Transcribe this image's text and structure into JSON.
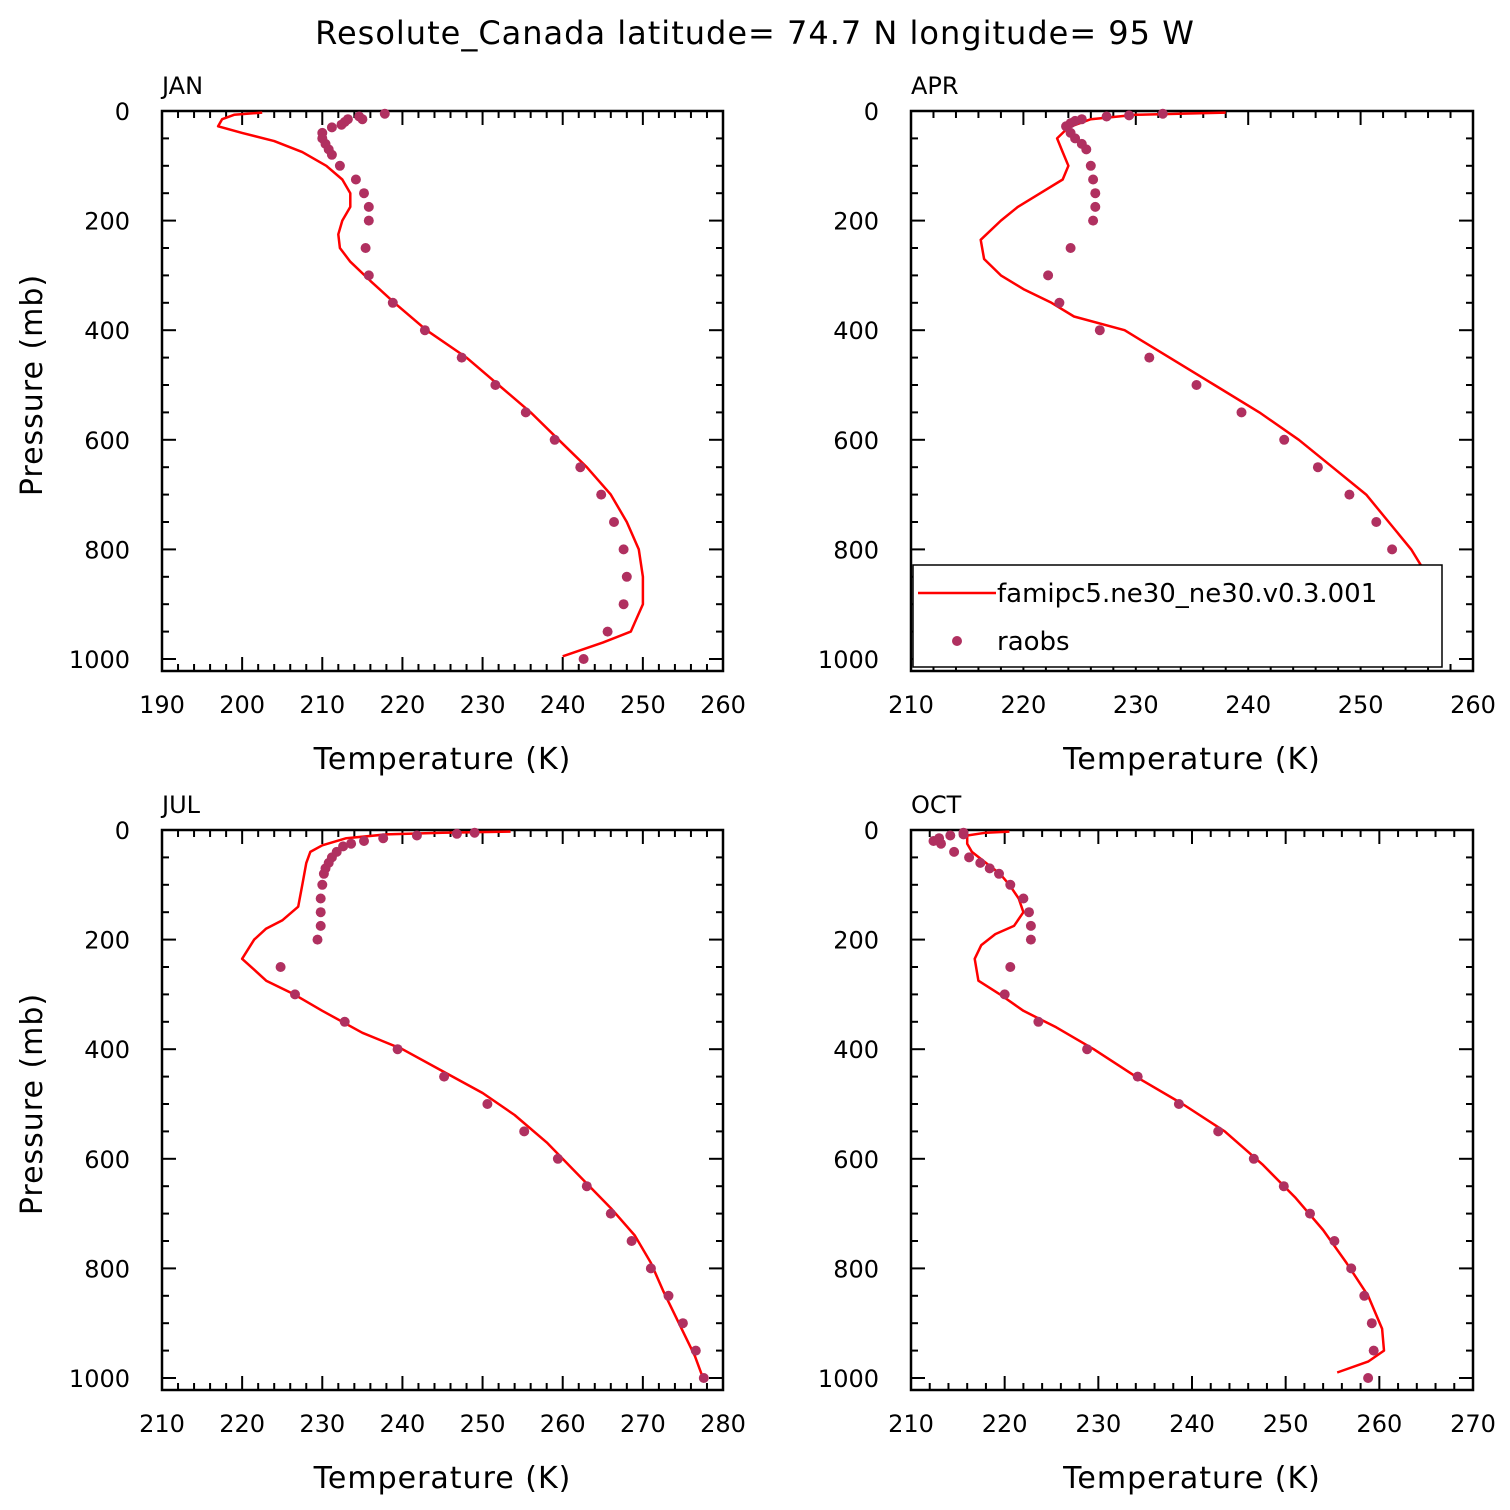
{
  "figure": {
    "title": "Resolute_Canada  latitude= 74.7 N longitude= 95 W",
    "legend": {
      "model_label": "famipc5.ne30_ne30.v0.3.001",
      "obs_label": "raobs",
      "panel": "APR"
    },
    "colors": {
      "model": "#ff0000",
      "obs": "#b03060",
      "axes": "#000000"
    }
  },
  "chart_data": [
    {
      "type": "line",
      "panel_label": "JAN",
      "xlabel": "Temperature (K)",
      "ylabel": "Pressure (mb)",
      "xlim": [
        190,
        260
      ],
      "ylim": [
        1000,
        0
      ],
      "xticks": [
        190,
        200,
        210,
        220,
        230,
        240,
        250,
        260
      ],
      "yticks": [
        0,
        200,
        400,
        600,
        800,
        1000
      ],
      "series": [
        {
          "kind": "line",
          "points": [
            [
              202.5,
              3
            ],
            [
              199,
              7
            ],
            [
              197.5,
              15
            ],
            [
              197,
              28
            ],
            [
              200,
              40
            ],
            [
              204,
              55
            ],
            [
              207.5,
              75
            ],
            [
              210.5,
              100
            ],
            [
              212.5,
              125
            ],
            [
              213.5,
              150
            ],
            [
              213.5,
              175
            ],
            [
              212.5,
              200
            ],
            [
              212,
              225
            ],
            [
              212.2,
              250
            ],
            [
              213.5,
              275
            ],
            [
              216,
              310
            ],
            [
              219,
              350
            ],
            [
              223,
              400
            ],
            [
              228,
              450
            ],
            [
              232,
              500
            ],
            [
              236,
              550
            ],
            [
              239.5,
              600
            ],
            [
              243,
              650
            ],
            [
              246,
              700
            ],
            [
              248,
              750
            ],
            [
              249.5,
              800
            ],
            [
              250,
              850
            ],
            [
              250,
              900
            ],
            [
              248.5,
              950
            ],
            [
              245,
              970
            ],
            [
              240,
              995
            ]
          ]
        },
        {
          "kind": "scatter",
          "points": [
            [
              217.8,
              5
            ],
            [
              214.6,
              10
            ],
            [
              213.2,
              15
            ],
            [
              215,
              15
            ],
            [
              212.8,
              20
            ],
            [
              212.4,
              25
            ],
            [
              211.2,
              30
            ],
            [
              210,
              40
            ],
            [
              210,
              50
            ],
            [
              210.4,
              60
            ],
            [
              210.8,
              70
            ],
            [
              211.2,
              80
            ],
            [
              212.2,
              100
            ],
            [
              214.2,
              125
            ],
            [
              215.2,
              150
            ],
            [
              215.8,
              175
            ],
            [
              215.8,
              200
            ],
            [
              215.4,
              250
            ],
            [
              215.8,
              300
            ],
            [
              218.8,
              350
            ],
            [
              222.8,
              400
            ],
            [
              227.4,
              450
            ],
            [
              231.6,
              500
            ],
            [
              235.4,
              550
            ],
            [
              239,
              600
            ],
            [
              242.2,
              650
            ],
            [
              244.8,
              700
            ],
            [
              246.4,
              750
            ],
            [
              247.6,
              800
            ],
            [
              248,
              850
            ],
            [
              247.6,
              900
            ],
            [
              245.6,
              950
            ],
            [
              242.6,
              1000
            ]
          ]
        }
      ]
    },
    {
      "type": "line",
      "panel_label": "APR",
      "xlabel": "Temperature (K)",
      "ylabel": "",
      "xlim": [
        210,
        260
      ],
      "ylim": [
        1000,
        0
      ],
      "xticks": [
        210,
        220,
        230,
        240,
        250,
        260
      ],
      "yticks": [
        0,
        200,
        400,
        600,
        800,
        1000
      ],
      "series": [
        {
          "kind": "line",
          "points": [
            [
              238,
              3
            ],
            [
              230,
              7
            ],
            [
              226,
              15
            ],
            [
              224,
              30
            ],
            [
              223,
              50
            ],
            [
              223.5,
              75
            ],
            [
              224,
              100
            ],
            [
              223.5,
              125
            ],
            [
              221.5,
              150
            ],
            [
              219.5,
              175
            ],
            [
              218,
              200
            ],
            [
              216.2,
              235
            ],
            [
              216.5,
              270
            ],
            [
              218,
              300
            ],
            [
              220,
              325
            ],
            [
              222.5,
              350
            ],
            [
              224.5,
              375
            ],
            [
              229,
              400
            ],
            [
              233,
              450
            ],
            [
              237,
              500
            ],
            [
              241,
              550
            ],
            [
              244.5,
              600
            ],
            [
              247.5,
              650
            ],
            [
              250.5,
              700
            ],
            [
              252.5,
              750
            ],
            [
              254.5,
              800
            ],
            [
              256,
              850
            ],
            [
              256.8,
              900
            ],
            [
              256.3,
              950
            ],
            [
              254,
              980
            ],
            [
              251,
              995
            ]
          ]
        },
        {
          "kind": "scatter",
          "points": [
            [
              232.4,
              5
            ],
            [
              229.4,
              8
            ],
            [
              227.4,
              10
            ],
            [
              225.2,
              15
            ],
            [
              224.6,
              18
            ],
            [
              224.2,
              22
            ],
            [
              223.8,
              28
            ],
            [
              224.2,
              40
            ],
            [
              224.6,
              50
            ],
            [
              225.2,
              60
            ],
            [
              225.6,
              70
            ],
            [
              226,
              100
            ],
            [
              226.2,
              125
            ],
            [
              226.4,
              150
            ],
            [
              226.4,
              175
            ],
            [
              226.2,
              200
            ],
            [
              224.2,
              250
            ],
            [
              222.2,
              300
            ],
            [
              223.2,
              350
            ],
            [
              226.8,
              400
            ],
            [
              231.2,
              450
            ],
            [
              235.4,
              500
            ],
            [
              239.4,
              550
            ],
            [
              243.2,
              600
            ],
            [
              246.2,
              650
            ],
            [
              249,
              700
            ],
            [
              251.4,
              750
            ],
            [
              252.8,
              800
            ],
            [
              253.8,
              850
            ],
            [
              254,
              900
            ],
            [
              253.2,
              950
            ],
            [
              251,
              1000
            ]
          ]
        }
      ]
    },
    {
      "type": "line",
      "panel_label": "JUL",
      "xlabel": "Temperature (K)",
      "ylabel": "Pressure (mb)",
      "xlim": [
        210,
        280
      ],
      "ylim": [
        1000,
        0
      ],
      "xticks": [
        210,
        220,
        230,
        240,
        250,
        260,
        270,
        280
      ],
      "yticks": [
        0,
        200,
        400,
        600,
        800,
        1000
      ],
      "series": [
        {
          "kind": "line",
          "points": [
            [
              253.5,
              3
            ],
            [
              245,
              5
            ],
            [
              238,
              8
            ],
            [
              233,
              15
            ],
            [
              230,
              28
            ],
            [
              228.5,
              40
            ],
            [
              228,
              60
            ],
            [
              227.5,
              100
            ],
            [
              227,
              140
            ],
            [
              225,
              165
            ],
            [
              223,
              180
            ],
            [
              221.5,
              200
            ],
            [
              220,
              235
            ],
            [
              221.5,
              255
            ],
            [
              223,
              275
            ],
            [
              226.5,
              300
            ],
            [
              230,
              330
            ],
            [
              235,
              370
            ],
            [
              240,
              400
            ],
            [
              245,
              440
            ],
            [
              250,
              480
            ],
            [
              254,
              520
            ],
            [
              258,
              570
            ],
            [
              262,
              630
            ],
            [
              266,
              690
            ],
            [
              269,
              740
            ],
            [
              271,
              790
            ],
            [
              272.5,
              840
            ],
            [
              274.5,
              900
            ],
            [
              276.5,
              960
            ],
            [
              277.5,
              1000
            ]
          ]
        },
        {
          "kind": "scatter",
          "points": [
            [
              249,
              5
            ],
            [
              246.8,
              7
            ],
            [
              241.8,
              10
            ],
            [
              237.6,
              15
            ],
            [
              235.2,
              20
            ],
            [
              233.6,
              25
            ],
            [
              232.6,
              30
            ],
            [
              231.8,
              40
            ],
            [
              231.2,
              50
            ],
            [
              230.8,
              60
            ],
            [
              230.4,
              70
            ],
            [
              230.2,
              80
            ],
            [
              230,
              100
            ],
            [
              229.8,
              125
            ],
            [
              229.8,
              150
            ],
            [
              229.8,
              175
            ],
            [
              229.4,
              200
            ],
            [
              224.8,
              250
            ],
            [
              226.6,
              300
            ],
            [
              232.8,
              350
            ],
            [
              239.4,
              400
            ],
            [
              245.2,
              450
            ],
            [
              250.6,
              500
            ],
            [
              255.2,
              550
            ],
            [
              259.4,
              600
            ],
            [
              263,
              650
            ],
            [
              266,
              700
            ],
            [
              268.6,
              750
            ],
            [
              271,
              800
            ],
            [
              273.2,
              850
            ],
            [
              275,
              900
            ],
            [
              276.6,
              950
            ],
            [
              277.6,
              1000
            ]
          ]
        }
      ]
    },
    {
      "type": "line",
      "panel_label": "OCT",
      "xlabel": "Temperature (K)",
      "ylabel": "",
      "xlim": [
        210,
        270
      ],
      "ylim": [
        1000,
        0
      ],
      "xticks": [
        210,
        220,
        230,
        240,
        250,
        260,
        270
      ],
      "yticks": [
        0,
        200,
        400,
        600,
        800,
        1000
      ],
      "series": [
        {
          "kind": "line",
          "points": [
            [
              220.5,
              3
            ],
            [
              218,
              5
            ],
            [
              216,
              10
            ],
            [
              216,
              25
            ],
            [
              216.5,
              40
            ],
            [
              218,
              60
            ],
            [
              219.5,
              80
            ],
            [
              220.5,
              100
            ],
            [
              221.5,
              125
            ],
            [
              222,
              150
            ],
            [
              221,
              175
            ],
            [
              219,
              190
            ],
            [
              217.5,
              210
            ],
            [
              216.8,
              235
            ],
            [
              217.2,
              275
            ],
            [
              219.5,
              300
            ],
            [
              222,
              330
            ],
            [
              225.5,
              360
            ],
            [
              229.5,
              400
            ],
            [
              234,
              450
            ],
            [
              239,
              500
            ],
            [
              243.5,
              550
            ],
            [
              247.5,
              610
            ],
            [
              251,
              670
            ],
            [
              254,
              730
            ],
            [
              256.5,
              790
            ],
            [
              258.8,
              850
            ],
            [
              260.3,
              910
            ],
            [
              260.5,
              950
            ],
            [
              258.8,
              970
            ],
            [
              255.5,
              990
            ]
          ]
        },
        {
          "kind": "scatter",
          "points": [
            [
              215.6,
              5
            ],
            [
              215.6,
              8
            ],
            [
              214.2,
              10
            ],
            [
              213,
              15
            ],
            [
              212.4,
              20
            ],
            [
              213.2,
              25
            ],
            [
              214.6,
              40
            ],
            [
              216.2,
              50
            ],
            [
              217.4,
              60
            ],
            [
              218.4,
              70
            ],
            [
              219.4,
              80
            ],
            [
              220.6,
              100
            ],
            [
              222,
              125
            ],
            [
              222.6,
              150
            ],
            [
              222.8,
              175
            ],
            [
              222.8,
              200
            ],
            [
              220.6,
              250
            ],
            [
              220,
              300
            ],
            [
              223.6,
              350
            ],
            [
              228.8,
              400
            ],
            [
              234.2,
              450
            ],
            [
              238.6,
              500
            ],
            [
              242.8,
              550
            ],
            [
              246.6,
              600
            ],
            [
              249.8,
              650
            ],
            [
              252.6,
              700
            ],
            [
              255.2,
              750
            ],
            [
              257,
              800
            ],
            [
              258.4,
              850
            ],
            [
              259.2,
              900
            ],
            [
              259.4,
              950
            ],
            [
              258.8,
              1000
            ]
          ]
        }
      ]
    }
  ]
}
